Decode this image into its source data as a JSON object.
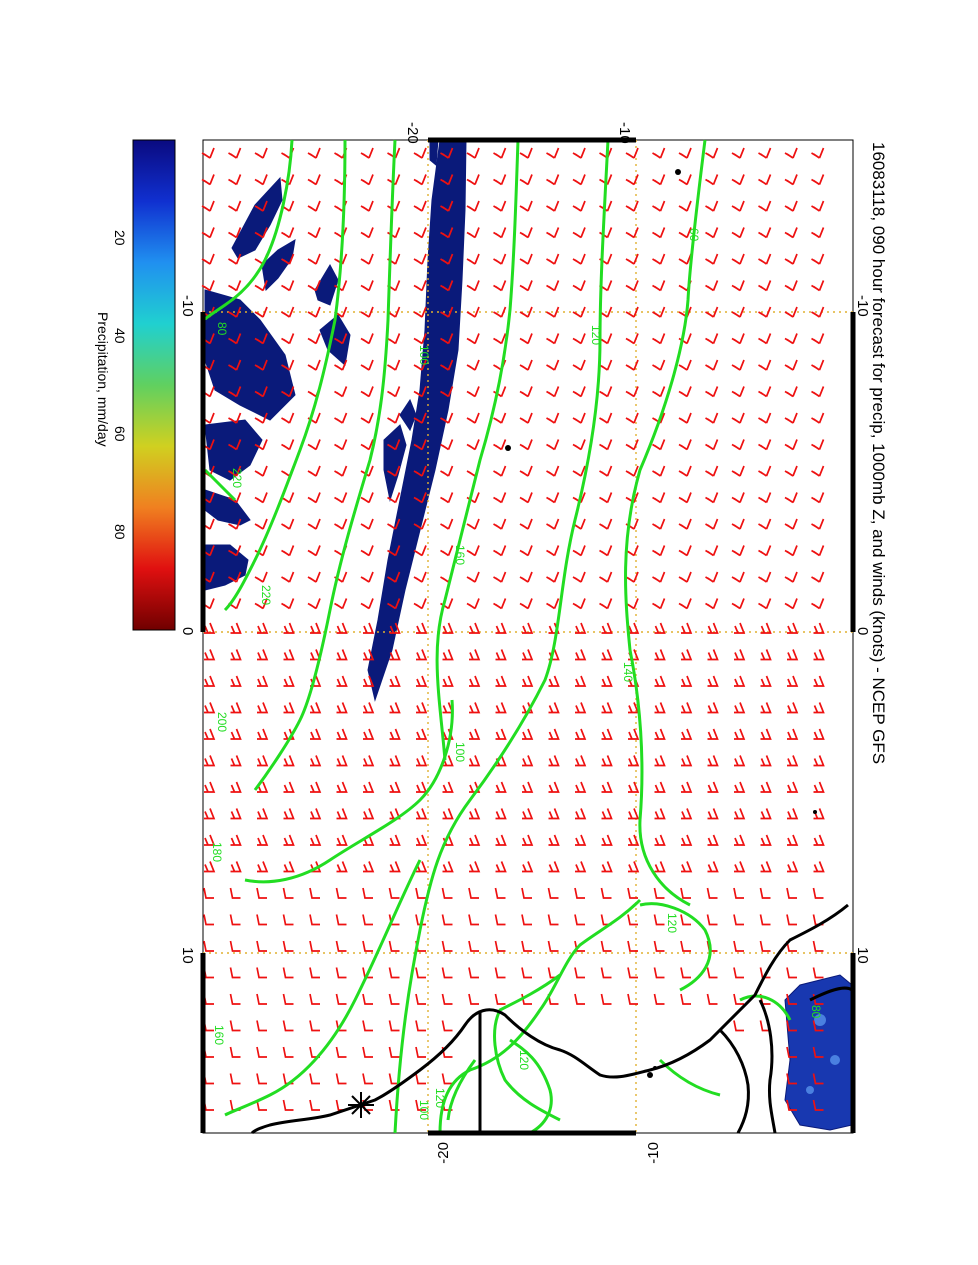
{
  "title": "16083118, 090 hour forecast for precip, 1000mb Z, and winds (knots) - NCEP GFS",
  "map": {
    "x_ticks_top": [
      "-20",
      "-10"
    ],
    "x_ticks_bottom": [
      "-20",
      "-10"
    ],
    "y_ticks_left": [
      "-10",
      "0",
      "10"
    ],
    "y_ticks_right": [
      "-10",
      "0",
      "10"
    ],
    "contour_labels": [
      "80",
      "220",
      "220",
      "200",
      "180",
      "160",
      "100",
      "160",
      "140",
      "100",
      "120",
      "60",
      "100",
      "120",
      "120",
      "120",
      "80"
    ],
    "colors": {
      "contour": "#22dd22",
      "barb": "#ee1111",
      "precip": "#0a1a7a",
      "coast": "#000000",
      "grid": "#e0b030"
    }
  },
  "colorbar": {
    "label": "Precipitation, mm/day",
    "ticks": [
      "20",
      "40",
      "60",
      "80"
    ],
    "tick_values": [
      20,
      40,
      60,
      80
    ],
    "range": [
      0,
      100
    ],
    "colors": [
      "#0a0a80",
      "#1030d0",
      "#2090f0",
      "#20d0d0",
      "#60d060",
      "#d0d020",
      "#f08020",
      "#e01010",
      "#700000"
    ]
  }
}
